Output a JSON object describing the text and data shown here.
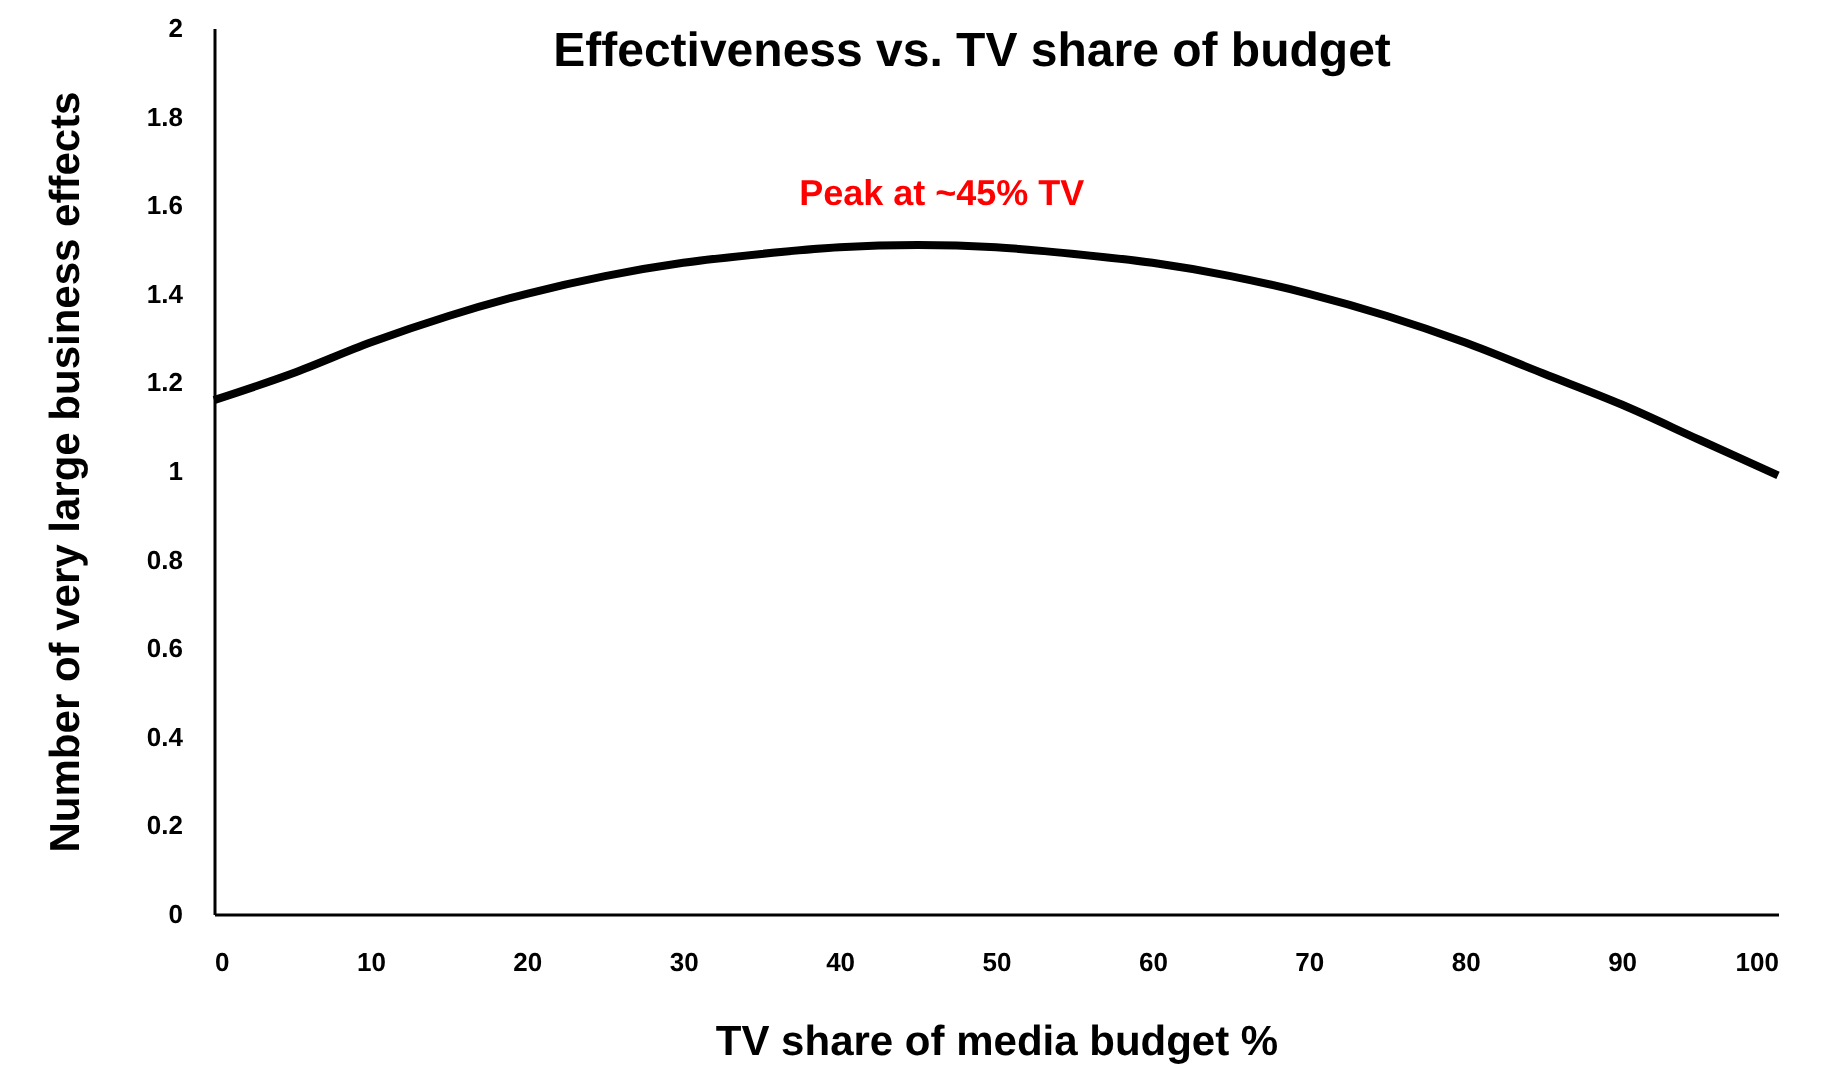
{
  "chart_data": {
    "type": "line",
    "title": "Effectiveness vs. TV share of budget",
    "xlabel": "TV share of media budget %",
    "ylabel": "Number of very large business effects",
    "x": [
      0,
      5,
      10,
      15,
      20,
      25,
      30,
      35,
      40,
      45,
      50,
      55,
      60,
      65,
      70,
      75,
      80,
      85,
      90,
      95,
      100
    ],
    "series": [
      {
        "color": "#000000",
        "values": [
          1.16,
          1.22,
          1.29,
          1.35,
          1.4,
          1.44,
          1.47,
          1.49,
          1.505,
          1.51,
          1.505,
          1.49,
          1.47,
          1.44,
          1.4,
          1.35,
          1.29,
          1.22,
          1.15,
          1.07,
          0.99
        ]
      }
    ],
    "xlim": [
      0,
      100
    ],
    "ylim": [
      0,
      2
    ],
    "xticks": [
      0,
      10,
      20,
      30,
      40,
      50,
      60,
      70,
      80,
      90,
      100
    ],
    "yticks": [
      0,
      0.2,
      0.4,
      0.6,
      0.8,
      1,
      1.2,
      1.4,
      1.6,
      1.8,
      2
    ],
    "line_style": "solid",
    "annotations": [
      {
        "text": "Peak at ~45% TV",
        "x": 45,
        "y": 1.51
      }
    ]
  }
}
